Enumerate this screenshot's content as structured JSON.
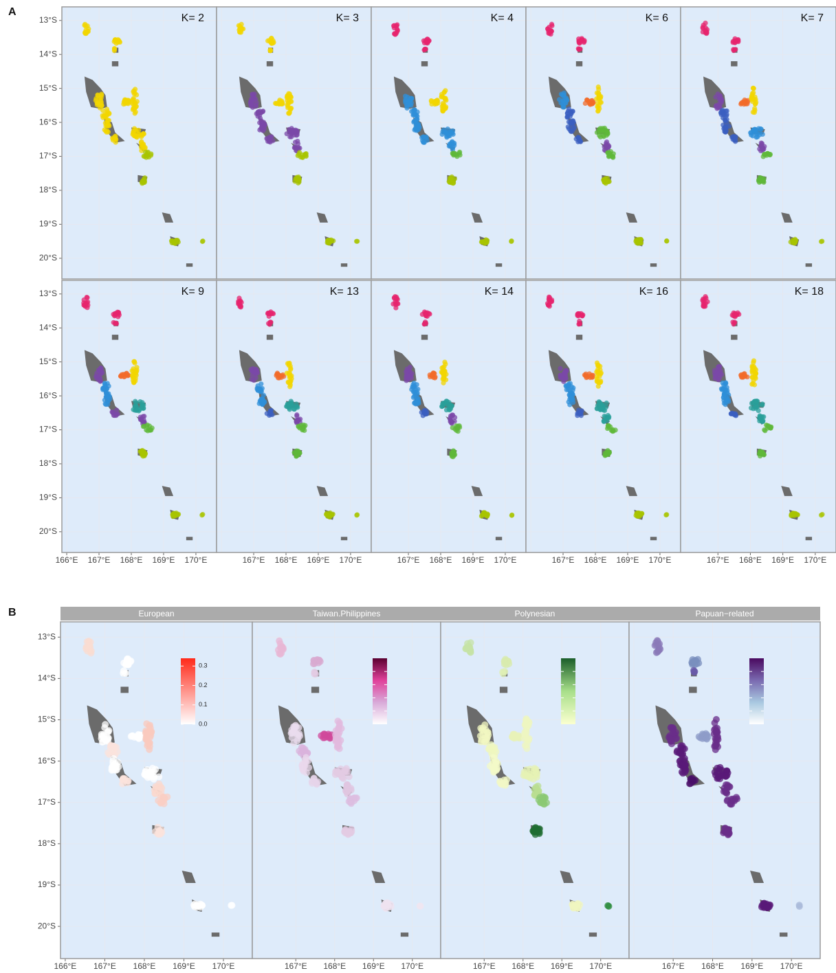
{
  "panel_a": {
    "label": "A",
    "xlim": [
      165.85,
      170.64
    ],
    "ylim": [
      -20.61,
      -12.6
    ],
    "lon_ticks": [
      {
        "value": 166,
        "label": "166°E"
      },
      {
        "value": 167,
        "label": "167°E"
      },
      {
        "value": 168,
        "label": "168°E"
      },
      {
        "value": 169,
        "label": "169°E"
      },
      {
        "value": 170,
        "label": "170°E"
      }
    ],
    "lat_ticks": [
      {
        "value": -13,
        "label": "13°S"
      },
      {
        "value": -14,
        "label": "14°S"
      },
      {
        "value": -15,
        "label": "15°S"
      },
      {
        "value": -16,
        "label": "16°S"
      },
      {
        "value": -17,
        "label": "17°S"
      },
      {
        "value": -18,
        "label": "18°S"
      },
      {
        "value": -19,
        "label": "19°S"
      },
      {
        "value": -20,
        "label": "20°S"
      }
    ],
    "panels": [
      {
        "title": "K= 2",
        "colors": [
          "#f2d600",
          "#f2d600",
          "#f2d600",
          "#f2d600",
          "#f2d600",
          "#f2d600",
          "#f2d600",
          "#f2d600",
          "#f2d600",
          "#f2d600",
          "#f2d600",
          "#a8c400",
          "#a8c400",
          "#a8c400",
          "#a8c400"
        ]
      },
      {
        "title": "K= 3",
        "colors": [
          "#f2d600",
          "#f2d600",
          "#f2d600",
          "#7b48a8",
          "#7b48a8",
          "#f2d600",
          "#f2d600",
          "#7b48a8",
          "#7b48a8",
          "#7b48a8",
          "#7b48a8",
          "#a8c400",
          "#a8c400",
          "#a8c400",
          "#a8c400"
        ]
      },
      {
        "title": "K= 4",
        "colors": [
          "#e6246e",
          "#e6246e",
          "#e6246e",
          "#2f8fd8",
          "#2f8fd8",
          "#f2d600",
          "#f2d600",
          "#2f8fd8",
          "#2f8fd8",
          "#2f8fd8",
          "#2f8fd8",
          "#5fb83a",
          "#a8c400",
          "#a8c400",
          "#a8c400"
        ]
      },
      {
        "title": "K= 6",
        "colors": [
          "#e6246e",
          "#e6246e",
          "#e6246e",
          "#2f8fd8",
          "#3b5fc0",
          "#f26b2a",
          "#f2d600",
          "#3b5fc0",
          "#3b5fc0",
          "#5fb83a",
          "#7b48a8",
          "#5fb83a",
          "#a8c400",
          "#a8c400",
          "#a8c400"
        ]
      },
      {
        "title": "K= 7",
        "colors": [
          "#e6246e",
          "#e6246e",
          "#e6246e",
          "#7b48a8",
          "#3b5fc0",
          "#f26b2a",
          "#f2d600",
          "#3b5fc0",
          "#3b5fc0",
          "#2f8fd8",
          "#7b48a8",
          "#5fb83a",
          "#5fb83a",
          "#a8c400",
          "#a8c400"
        ]
      },
      {
        "title": "K= 9",
        "colors": [
          "#e6246e",
          "#e6246e",
          "#e6246e",
          "#7b48a8",
          "#2f8fd8",
          "#f26b2a",
          "#f2d600",
          "#2f8fd8",
          "#7b48a8",
          "#2a9f9a",
          "#7b48a8",
          "#5fb83a",
          "#a8c400",
          "#a8c400",
          "#a8c400"
        ]
      },
      {
        "title": "K= 13",
        "colors": [
          "#e6246e",
          "#e6246e",
          "#e6246e",
          "#7b48a8",
          "#2f8fd8",
          "#f26b2a",
          "#f2d600",
          "#2f8fd8",
          "#3b5fc0",
          "#2a9f9a",
          "#7b48a8",
          "#5fb83a",
          "#5fb83a",
          "#a8c400",
          "#a8c400"
        ]
      },
      {
        "title": "K= 14",
        "colors": [
          "#e6246e",
          "#e6246e",
          "#e6246e",
          "#7b48a8",
          "#2f8fd8",
          "#f26b2a",
          "#f2d600",
          "#2f8fd8",
          "#3b5fc0",
          "#2a9f9a",
          "#7b48a8",
          "#5fb83a",
          "#5fb83a",
          "#a8c400",
          "#a8c400"
        ]
      },
      {
        "title": "K= 16",
        "colors": [
          "#e6246e",
          "#e6246e",
          "#e6246e",
          "#7b48a8",
          "#2f8fd8",
          "#f26b2a",
          "#f2d600",
          "#2f8fd8",
          "#3b5fc0",
          "#2a9f9a",
          "#2a9f9a",
          "#5fb83a",
          "#5fb83a",
          "#a8c400",
          "#a8c400"
        ]
      },
      {
        "title": "K= 18",
        "colors": [
          "#e6246e",
          "#e6246e",
          "#e6246e",
          "#7b48a8",
          "#2f8fd8",
          "#f26b2a",
          "#f2d600",
          "#2f8fd8",
          "#3b5fc0",
          "#2a9f9a",
          "#2a9f9a",
          "#5fb83a",
          "#5fb83a",
          "#a8c400",
          "#a8c400"
        ]
      }
    ]
  },
  "panel_b": {
    "label": "B",
    "xlim": [
      165.88,
      170.73
    ],
    "ylim": [
      -20.78,
      -12.63
    ],
    "facets": [
      {
        "title": "European",
        "colors": [
          "#fadcd2",
          "#ffffff",
          "#ffffff",
          "#ffffff",
          "#fbe3dc",
          "#ffffff",
          "#f9c9bd",
          "#ffffff",
          "#fbe3dc",
          "#ffffff",
          "#fbd8ce",
          "#f9cfc4",
          "#fbe3dc",
          "#ffffff",
          "#ffffff"
        ],
        "legend": {
          "colors": [
            "#ffffff",
            "#ff2a1a"
          ],
          "lim": [
            0,
            0.34
          ],
          "ticks": [
            {
              "value": 0,
              "label": "0.0"
            },
            0.1,
            0.2,
            0.3
          ]
        }
      },
      {
        "title": "Taiwan.Philippines",
        "colors": [
          "#e8b7d4",
          "#d8a9d0",
          "#e3cbe3",
          "#eadcee",
          "#d9b3dc",
          "#d04a9b",
          "#e2b9dd",
          "#ead8ec",
          "#e6d4ea",
          "#e3cbe3",
          "#e0c6e0",
          "#dcbde0",
          "#e3cbe3",
          "#efe3f0",
          "#f0e6f0"
        ],
        "legend": {
          "colors": [
            "#ffffff",
            "#d8a9d8",
            "#e0409a",
            "#5a0030"
          ]
        }
      },
      {
        "title": "Polynesian",
        "colors": [
          "#c5e3a5",
          "#d8ebae",
          "#dfefb5",
          "#f2f7c2",
          "#eff7bf",
          "#e8f2b8",
          "#eef6c0",
          "#f3f9c8",
          "#f2f8c5",
          "#e6f2b4",
          "#b9dd90",
          "#8bc873",
          "#1f6e32",
          "#f0f6c0",
          "#2a8a3a"
        ],
        "legend": {
          "colors": [
            "#fbffd0",
            "#a8df8a",
            "#1b5e2a"
          ]
        }
      },
      {
        "title": "Papuan−related",
        "colors": [
          "#8a7ab8",
          "#7a8fbe",
          "#6a5aa8",
          "#6a2d8a",
          "#5a1a78",
          "#8e9cc8",
          "#6a2d8a",
          "#5a1a78",
          "#4a0f68",
          "#5a1a78",
          "#6a2d8a",
          "#6a2d8a",
          "#6a2d8a",
          "#5a1a78",
          "#a8b8d8"
        ],
        "legend": {
          "colors": [
            "#ffffff",
            "#a8c8e0",
            "#7a6ab0",
            "#4a0a60"
          ]
        }
      }
    ]
  }
}
